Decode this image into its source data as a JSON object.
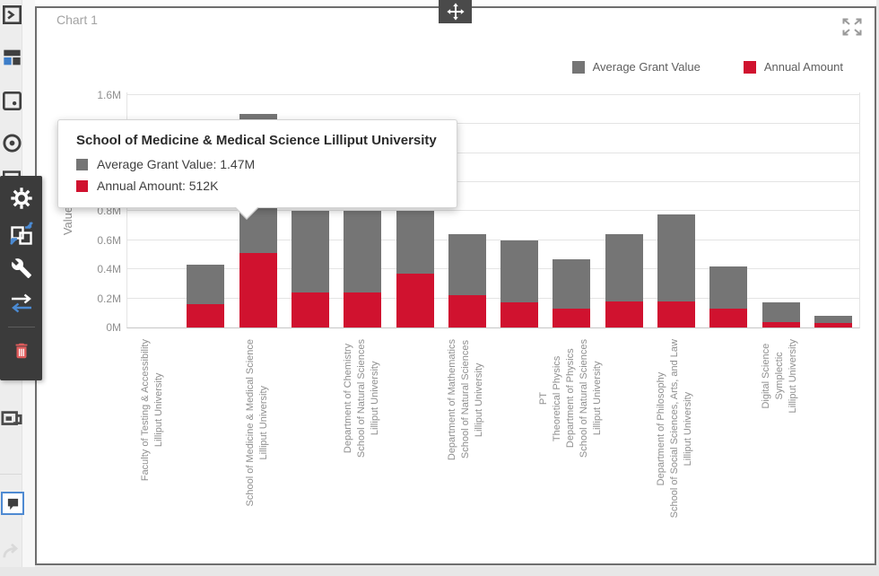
{
  "widget": {
    "title": "Chart 1"
  },
  "legend": {
    "items": [
      {
        "label": "Average Grant Value",
        "color": "#757575"
      },
      {
        "label": "Annual Amount",
        "color": "#d0122f"
      }
    ]
  },
  "tooltip": {
    "title": "School of Medicine & Medical Science Lilliput University",
    "rows": [
      {
        "label": "Average Grant Value",
        "value": "1.47M",
        "color": "#757575"
      },
      {
        "label": "Annual Amount",
        "value": "512K",
        "color": "#d0122f"
      }
    ]
  },
  "chart_data": {
    "type": "bar",
    "subtype": "overlapped-columns",
    "title": "Chart 1",
    "xlabel": "",
    "ylabel": "Value",
    "ylim": [
      0,
      1.6
    ],
    "unit": "M",
    "grid": true,
    "legend_position": "top-right",
    "yticks": [
      {
        "label": "0M",
        "value": 0
      },
      {
        "label": "0.2M",
        "value": 0.2
      },
      {
        "label": "0.4M",
        "value": 0.4
      },
      {
        "label": "0.6M",
        "value": 0.6
      },
      {
        "label": "0.8M",
        "value": 0.8
      },
      {
        "label": "1M",
        "value": 1.0
      },
      {
        "label": "1.2M",
        "value": 1.2
      },
      {
        "label": "1.4M",
        "value": 1.4
      },
      {
        "label": "1.6M",
        "value": 1.6
      }
    ],
    "categories": [
      [
        "Faculty of Testing & Accessibility",
        "Lilliput University"
      ],
      [],
      [
        "School of Medicine & Medical Science",
        "Lilliput University"
      ],
      [],
      [
        "Department of Chemistry",
        "School of Natural Sciences",
        "Lilliput University"
      ],
      [],
      [
        "Department of Mathematics",
        "School of Natural Sciences",
        "Lilliput University"
      ],
      [],
      [
        "PT",
        "Theoretical Physics",
        "Department of Physics",
        "School of Natural Sciences",
        "Lilliput University"
      ],
      [],
      [
        "Department of Philosophy",
        "School of Social Sciences, Arts, and Law",
        "Lilliput University"
      ],
      [],
      [
        "Digital Science",
        "Symplectic",
        "Lilliput University"
      ],
      []
    ],
    "series": [
      {
        "name": "Average Grant Value",
        "color": "#757575",
        "values": [
          0,
          0.43,
          1.47,
          0.8,
          0.8,
          0.8,
          0.64,
          0.6,
          0.47,
          0.64,
          0.78,
          0.42,
          0.17,
          0.08
        ]
      },
      {
        "name": "Annual Amount",
        "color": "#d0122f",
        "values": [
          0,
          0.16,
          0.512,
          0.24,
          0.24,
          0.37,
          0.22,
          0.17,
          0.13,
          0.18,
          0.18,
          0.13,
          0.04,
          0.03
        ]
      }
    ]
  },
  "sidebar": {
    "icons": [
      "console",
      "dashboard",
      "image",
      "target",
      "widget",
      "label-frame",
      "chart-bubble-selected",
      "redo-faint"
    ],
    "toolbar_icons": [
      "settings",
      "swap",
      "wrench",
      "transfer",
      "trash"
    ]
  }
}
